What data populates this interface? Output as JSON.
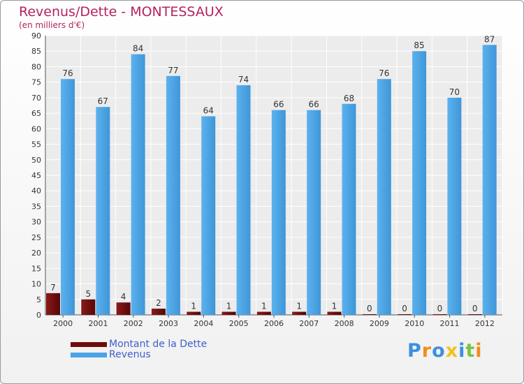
{
  "chart_data": {
    "type": "bar",
    "title": "Revenus/Dette - MONTESSAUX",
    "subtitle": "(en milliers d'€)",
    "categories": [
      "2000",
      "2001",
      "2002",
      "2003",
      "2004",
      "2005",
      "2006",
      "2007",
      "2008",
      "2009",
      "2010",
      "2011",
      "2012"
    ],
    "series": [
      {
        "name": "Montant de la Dette",
        "color": "#6e0c0c",
        "values": [
          7,
          5,
          4,
          2,
          1,
          1,
          1,
          1,
          1,
          0,
          0,
          0,
          0
        ]
      },
      {
        "name": "Revenus",
        "color": "#4aa3e4",
        "values": [
          76,
          67,
          84,
          77,
          64,
          74,
          66,
          66,
          68,
          76,
          85,
          70,
          87
        ]
      }
    ],
    "ylim": [
      0,
      90
    ],
    "ytick_step": 5,
    "grid": true,
    "legend_position": "bottom-left"
  },
  "logo": {
    "letters": [
      "P",
      "r",
      "o",
      "x",
      "i",
      "t",
      "i"
    ],
    "colors": [
      "#3d8fe0",
      "#f28c1c",
      "#3d8fe0",
      "#f2c21c",
      "#3d8fe0",
      "#7cc243",
      "#f28c1c"
    ]
  }
}
